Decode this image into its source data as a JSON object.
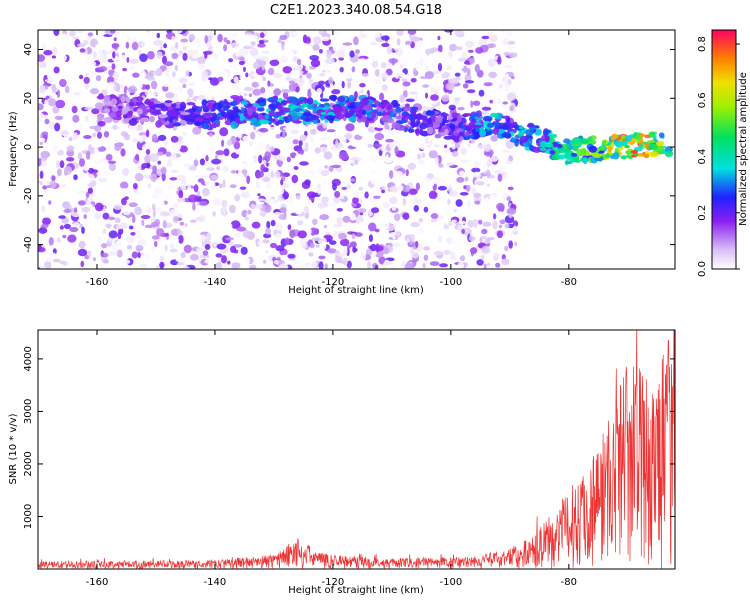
{
  "title": "C2E1.2023.340.08.54.G18",
  "chart_data": [
    {
      "type": "heatmap",
      "xlabel": "Height of straight line (km)",
      "ylabel": "Frequency (Hz)",
      "xlim": [
        -170,
        -62
      ],
      "ylim": [
        -50,
        48
      ],
      "x_ticks": [
        "-160",
        "-140",
        "-120",
        "-100",
        "-80"
      ],
      "y_ticks": [
        "-40",
        "-20",
        "0",
        "20",
        "40"
      ],
      "colorbar": {
        "label": "Normalized spectral amplitude",
        "range": [
          0.0,
          0.85
        ],
        "ticks": [
          "0.0",
          "0.2",
          "0.4",
          "0.6",
          "0.8"
        ]
      },
      "ridge": [
        {
          "x": -158,
          "y": 16,
          "amp": 0.12
        },
        {
          "x": -145,
          "y": 13,
          "amp": 0.18
        },
        {
          "x": -135,
          "y": 14,
          "amp": 0.28
        },
        {
          "x": -125,
          "y": 15,
          "amp": 0.32
        },
        {
          "x": -115,
          "y": 16,
          "amp": 0.25
        },
        {
          "x": -100,
          "y": 8,
          "amp": 0.18
        },
        {
          "x": -93,
          "y": 9,
          "amp": 0.32
        },
        {
          "x": -85,
          "y": 3,
          "amp": 0.3
        },
        {
          "x": -80,
          "y": -2,
          "amp": 0.45
        },
        {
          "x": -75,
          "y": -1,
          "amp": 0.55
        },
        {
          "x": -70,
          "y": 0,
          "amp": 0.82
        },
        {
          "x": -65,
          "y": 1,
          "amp": 0.65
        }
      ],
      "signal_end_km": -89
    },
    {
      "type": "line",
      "xlabel": "Height of straight line (km)",
      "ylabel": "SNR (10 * v/v)",
      "xlim": [
        -170,
        -62
      ],
      "ylim": [
        0,
        4550
      ],
      "x_ticks": [
        "-160",
        "-140",
        "-120",
        "-100",
        "-80"
      ],
      "y_ticks": [
        "1000",
        "2000",
        "3000",
        "4000"
      ],
      "color": "#ee3333",
      "envelope": [
        {
          "x": -170,
          "y": 150
        },
        {
          "x": -140,
          "y": 170
        },
        {
          "x": -130,
          "y": 280
        },
        {
          "x": -126,
          "y": 600
        },
        {
          "x": -122,
          "y": 300
        },
        {
          "x": -110,
          "y": 200
        },
        {
          "x": -95,
          "y": 250
        },
        {
          "x": -88,
          "y": 500
        },
        {
          "x": -84,
          "y": 900
        },
        {
          "x": -80,
          "y": 1500
        },
        {
          "x": -76,
          "y": 2200
        },
        {
          "x": -72,
          "y": 3300
        },
        {
          "x": -70,
          "y": 4200
        },
        {
          "x": -66,
          "y": 3500
        },
        {
          "x": -63,
          "y": 4400
        }
      ]
    }
  ]
}
